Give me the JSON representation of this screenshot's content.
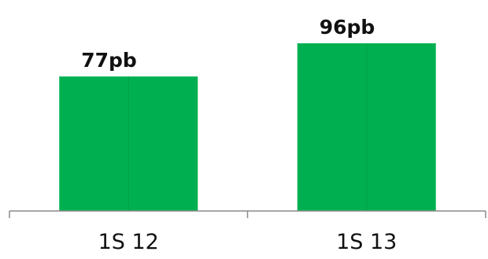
{
  "chart_data": {
    "type": "bar",
    "categories": [
      "1S 12",
      "1S 13"
    ],
    "values": [
      77,
      96
    ],
    "data_labels": [
      "77pb",
      "96pb"
    ],
    "ylim": [
      0,
      96
    ],
    "colors": {
      "bar": "#00B050",
      "axis": "#8C8C8C",
      "bar_divider": "#00A04A"
    },
    "grid": false,
    "legend": "none"
  }
}
